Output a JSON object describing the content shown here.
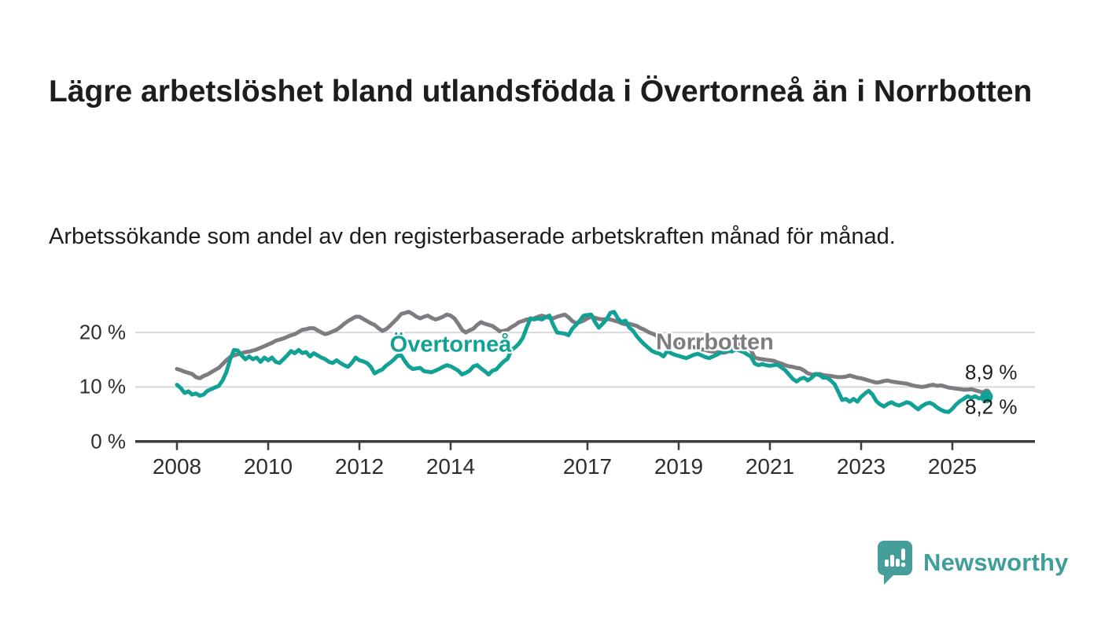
{
  "page": {
    "title": "Lägre arbetslöshet bland utlandsfödda i Övertorneå än i Norrbotten",
    "subtitle": "Arbetssökande som andel av den registerbaserade arbetskraften månad för månad."
  },
  "branding": {
    "logo_text": "Newsworthy",
    "logo_icon": "speech-bubble-with-bar-chart-and-exclamation",
    "brand_color": "#459e99"
  },
  "colors": {
    "overtornea_line": "#12a195",
    "norrbotten_line": "#7d7d81",
    "gridline": "#d8d8d8",
    "axis": "#3d3d3d",
    "tick_label": "#2e2e2e",
    "text": "#1d1d1b"
  },
  "chart_data": {
    "type": "line",
    "x_unit": "month",
    "x_start": "2008-01",
    "x_end": "2025-10",
    "grid": "horizontal",
    "ylim": [
      0,
      26
    ],
    "y_tick_labels": [
      "0 %",
      "10 %",
      "20 %"
    ],
    "y_tick_values": [
      0,
      10,
      20
    ],
    "x_tick_years": [
      2008,
      2010,
      2012,
      2014,
      2017,
      2019,
      2021,
      2023,
      2025
    ],
    "series": [
      {
        "name": "Övertorneå",
        "color": "#12a195",
        "end_label": "8,2 %",
        "end_value": 8.2,
        "values": [
          10.4,
          9.8,
          8.9,
          9.2,
          8.6,
          8.8,
          8.4,
          8.6,
          9.3,
          9.6,
          9.9,
          10.2,
          11.2,
          12.7,
          15.1,
          16.8,
          16.7,
          15.8,
          15.1,
          15.6,
          15.1,
          15.4,
          14.6,
          15.4,
          14.9,
          15.4,
          14.6,
          14.4,
          15.1,
          15.8,
          16.6,
          16.2,
          16.8,
          16.2,
          16.4,
          15.6,
          16.2,
          15.8,
          15.4,
          15.1,
          14.6,
          14.4,
          14.9,
          14.4,
          14.0,
          13.7,
          14.4,
          15.4,
          14.9,
          14.7,
          14.4,
          13.7,
          12.5,
          12.9,
          13.2,
          13.9,
          14.4,
          15.0,
          15.7,
          15.8,
          14.7,
          13.8,
          13.3,
          13.4,
          13.5,
          12.9,
          12.8,
          12.7,
          13.0,
          13.3,
          13.7,
          14.0,
          13.8,
          13.4,
          13.0,
          12.3,
          12.6,
          13.0,
          13.8,
          14.0,
          13.4,
          12.9,
          12.3,
          13.0,
          13.2,
          14.0,
          14.7,
          15.2,
          16.8,
          17.3,
          18.0,
          19.0,
          20.9,
          22.6,
          22.4,
          22.6,
          22.4,
          22.8,
          23.1,
          21.4,
          20.0,
          19.9,
          19.8,
          19.5,
          20.7,
          21.4,
          22.2,
          23.1,
          23.2,
          23.3,
          21.9,
          20.9,
          21.6,
          22.4,
          23.6,
          23.8,
          22.6,
          21.9,
          22.2,
          20.9,
          20.3,
          19.3,
          18.5,
          17.8,
          17.2,
          16.6,
          16.3,
          16.1,
          15.6,
          16.6,
          16.2,
          15.9,
          15.7,
          15.5,
          15.3,
          15.6,
          15.9,
          16.1,
          15.8,
          15.5,
          15.3,
          15.6,
          15.9,
          16.3,
          16.6,
          16.8,
          16.5,
          16.9,
          16.7,
          16.4,
          16.0,
          15.6,
          14.3,
          14.0,
          14.2,
          14.0,
          13.9,
          14.0,
          14.1,
          13.6,
          13.1,
          12.3,
          11.5,
          11.0,
          11.5,
          11.7,
          11.2,
          11.7,
          12.4,
          12.2,
          11.7,
          11.7,
          11.2,
          10.5,
          9.1,
          7.6,
          7.8,
          7.3,
          7.8,
          7.3,
          8.2,
          8.8,
          9.3,
          8.6,
          7.4,
          6.8,
          6.4,
          6.9,
          7.2,
          6.8,
          6.6,
          6.9,
          7.2,
          7.0,
          6.4,
          5.9,
          6.5,
          6.9,
          7.1,
          6.8,
          6.2,
          5.8,
          5.5,
          5.4,
          6.0,
          6.8,
          7.4,
          7.8,
          8.3,
          8.0,
          8.3,
          7.9,
          8.0,
          8.2
        ]
      },
      {
        "name": "Norrbotten",
        "color": "#7d7d81",
        "end_label": "8,9 %",
        "end_value": 8.9,
        "values": [
          13.3,
          13.1,
          12.8,
          12.6,
          12.4,
          11.8,
          11.6,
          12.0,
          12.3,
          12.7,
          13.1,
          13.5,
          14.2,
          14.9,
          15.5,
          15.8,
          16.0,
          16.2,
          16.4,
          16.5,
          16.7,
          16.9,
          17.2,
          17.5,
          17.8,
          18.1,
          18.5,
          18.7,
          18.9,
          19.2,
          19.5,
          19.7,
          20.1,
          20.5,
          20.6,
          20.8,
          20.8,
          20.4,
          20.0,
          19.7,
          19.9,
          20.2,
          20.5,
          21.0,
          21.6,
          22.1,
          22.5,
          22.9,
          22.9,
          22.5,
          22.1,
          21.7,
          21.4,
          20.8,
          20.3,
          20.6,
          21.2,
          21.9,
          22.6,
          23.4,
          23.6,
          23.8,
          23.4,
          22.9,
          22.6,
          22.9,
          23.1,
          22.7,
          22.4,
          22.6,
          22.9,
          23.3,
          23.1,
          22.6,
          21.6,
          20.5,
          20.0,
          20.4,
          20.7,
          21.4,
          21.9,
          21.6,
          21.4,
          21.2,
          20.7,
          20.2,
          20.3,
          20.5,
          21.0,
          21.4,
          21.9,
          22.1,
          22.4,
          22.5,
          22.6,
          22.9,
          23.1,
          22.9,
          22.7,
          22.6,
          22.9,
          23.1,
          23.3,
          22.8,
          22.1,
          21.7,
          21.9,
          22.2,
          22.6,
          22.9,
          22.7,
          22.5,
          22.4,
          22.5,
          22.4,
          22.2,
          22.0,
          21.7,
          21.5,
          21.6,
          21.4,
          21.2,
          20.8,
          20.5,
          20.1,
          19.8,
          19.5,
          19.2,
          18.9,
          18.7,
          18.5,
          18.3,
          18.1,
          17.9,
          17.7,
          17.5,
          17.3,
          17.1,
          16.9,
          16.8,
          16.6,
          16.5,
          16.4,
          16.3,
          16.3,
          16.5,
          17.0,
          17.5,
          17.8,
          18.0,
          17.6,
          16.8,
          15.4,
          15.2,
          15.1,
          15.0,
          14.9,
          14.8,
          14.5,
          14.3,
          14.0,
          13.8,
          13.7,
          13.5,
          13.4,
          13.0,
          12.5,
          12.3,
          12.3,
          12.4,
          12.2,
          12.1,
          12.0,
          11.9,
          11.8,
          11.8,
          11.9,
          12.1,
          11.9,
          11.7,
          11.6,
          11.4,
          11.2,
          11.0,
          10.8,
          10.9,
          11.1,
          11.2,
          11.0,
          10.9,
          10.8,
          10.7,
          10.6,
          10.4,
          10.2,
          10.1,
          10.0,
          10.1,
          10.3,
          10.4,
          10.2,
          10.3,
          10.1,
          9.9,
          9.8,
          9.7,
          9.6,
          9.5,
          9.5,
          9.6,
          9.4,
          9.2,
          9.0,
          8.9
        ]
      }
    ],
    "annotations": [
      {
        "text": "Övertorneå",
        "series": "Övertorneå"
      },
      {
        "text": "Norrbotten",
        "series": "Norrbotten"
      }
    ]
  }
}
